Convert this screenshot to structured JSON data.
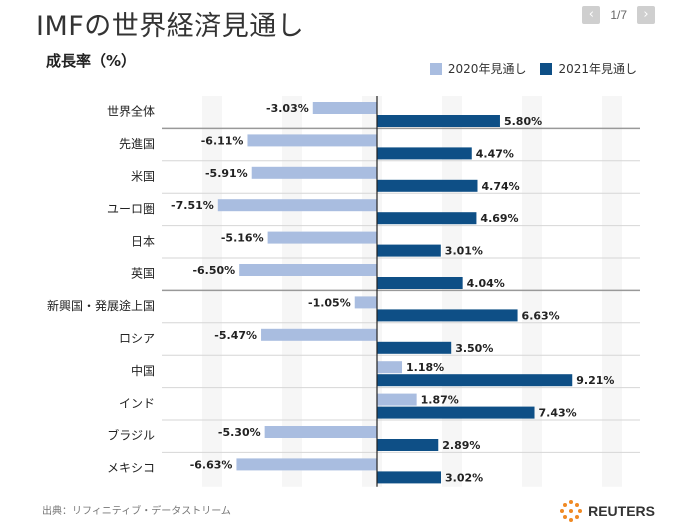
{
  "header": {
    "title": "IMFの世界経済見通し"
  },
  "pager": {
    "text": "1/7",
    "prev_icon": "chevron-left-icon",
    "next_icon": "chevron-right-icon"
  },
  "footer": {
    "source": "出典：リフィニティブ・データストリーム",
    "brand": "REUTERS"
  },
  "colors": {
    "light": "#a9bde0",
    "dark": "#0e4f86",
    "separator": "#bbbbbb",
    "stripe": "#f6f6f6",
    "axis": "#222222"
  },
  "chart_data": {
    "type": "bar",
    "orientation": "horizontal",
    "title": "IMFの世界経済見通し",
    "ylabel": "成長率（%）",
    "legend_position": "top-right",
    "categories": [
      "世界全体",
      "先進国",
      "米国",
      "ユーロ圏",
      "日本",
      "英国",
      "新興国・発展途上国",
      "ロシア",
      "中国",
      "インド",
      "ブラジル",
      "メキシコ"
    ],
    "series": [
      {
        "name": "2020年見通し",
        "values": [
          -3.03,
          -6.11,
          -5.91,
          -7.51,
          -5.16,
          -6.5,
          -1.05,
          -5.47,
          1.18,
          1.87,
          -5.3,
          -6.63
        ],
        "labels": [
          "-3.03%",
          "-6.11%",
          "-5.91%",
          "-7.51%",
          "-5.16%",
          "-6.50%",
          "-1.05%",
          "-5.47%",
          "1.18%",
          "1.87%",
          "-5.30%",
          "-6.63%"
        ]
      },
      {
        "name": "2021年見通し",
        "values": [
          5.8,
          4.47,
          4.74,
          4.69,
          3.01,
          4.04,
          6.63,
          3.5,
          9.21,
          7.43,
          2.89,
          3.02
        ],
        "labels": [
          "5.80%",
          "4.47%",
          "4.74%",
          "4.69%",
          "3.01%",
          "4.04%",
          "6.63%",
          "3.50%",
          "9.21%",
          "7.43%",
          "2.89%",
          "3.02%"
        ]
      }
    ],
    "xlim": [
      -10,
      10
    ],
    "group_separators_after": [
      0,
      5
    ]
  }
}
